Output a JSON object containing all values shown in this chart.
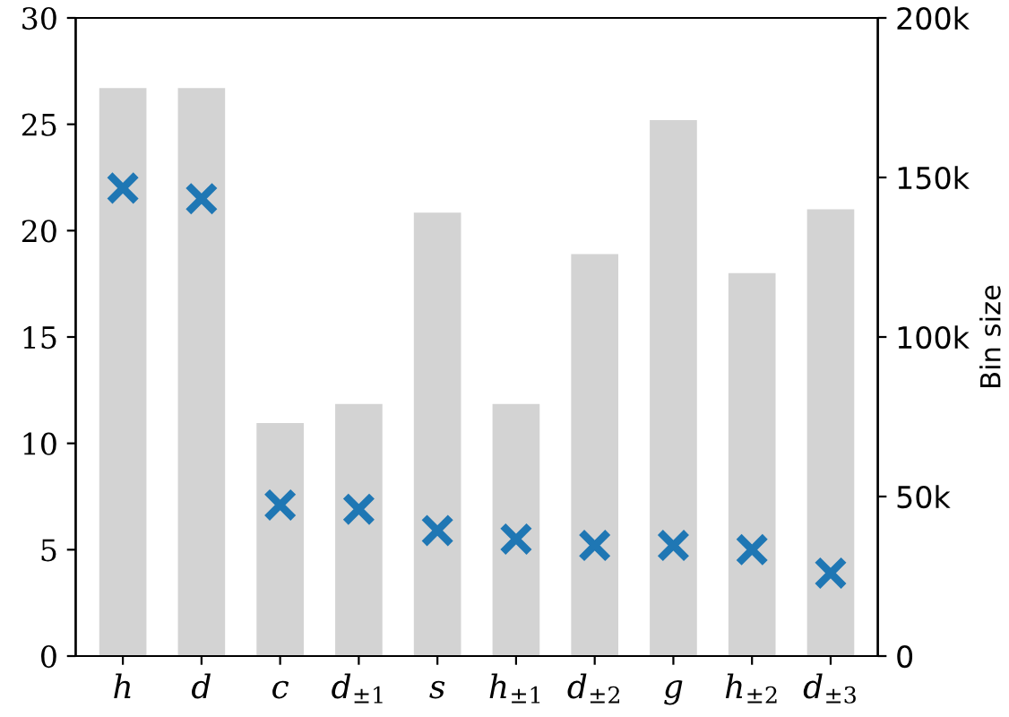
{
  "chart_data": {
    "type": "bar",
    "categories": [
      "h",
      "d",
      "c",
      "d$_{±1}$",
      "s",
      "h$_{±1}$",
      "d$_{±2}$",
      "g",
      "h$_{±2}$",
      "d$_{±3}$"
    ],
    "series": [
      {
        "axis": "y2",
        "color": "#d3d3d3",
        "values": [
          178000,
          178000,
          73000,
          79000,
          139000,
          79000,
          126000,
          168000,
          120000,
          140000
        ]
      },
      {
        "type": "scatter",
        "color": "#1f77b4",
        "marker": "cross",
        "values": [
          22.0,
          21.5,
          7.1,
          6.9,
          5.9,
          5.5,
          5.2,
          5.2,
          5.0,
          3.9
        ]
      }
    ],
    "ylim": [
      0,
      30
    ],
    "yticks": [
      0,
      5,
      10,
      15,
      20,
      25,
      30
    ],
    "y2lim": [
      0,
      200000
    ],
    "y2ticks": [
      0,
      {
        "value": 50000,
        "label": "50k"
      },
      {
        "value": 100000,
        "label": "100k"
      },
      {
        "value": 150000,
        "label": "150k"
      },
      {
        "value": 200000,
        "label": "200k"
      }
    ],
    "y2label": "Bin size",
    "grid": false,
    "legend": false
  }
}
